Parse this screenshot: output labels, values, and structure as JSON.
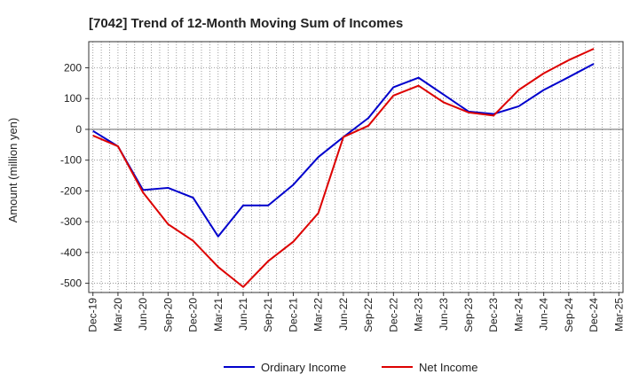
{
  "chart_data": {
    "type": "line",
    "title": "[7042]  Trend of 12-Month Moving Sum of Incomes",
    "xlabel": "",
    "ylabel": "Amount (million yen)",
    "ylim": [
      -530,
      285
    ],
    "yticks": [
      200,
      100,
      0,
      -100,
      -200,
      -300,
      -400,
      -500
    ],
    "grid": true,
    "legend_position": "bottom-center",
    "categories": [
      "Dec-19",
      "Mar-20",
      "Jun-20",
      "Sep-20",
      "Dec-20",
      "Mar-21",
      "Jun-21",
      "Sep-21",
      "Dec-21",
      "Mar-22",
      "Jun-22",
      "Sep-22",
      "Dec-22",
      "Mar-23",
      "Jun-23",
      "Sep-23",
      "Dec-23",
      "Mar-24",
      "Jun-24",
      "Sep-24",
      "Dec-24",
      "Mar-25"
    ],
    "x": [
      "Dec-19",
      "Jan-20",
      "Feb-20",
      "Mar-20",
      "Apr-20",
      "May-20",
      "Jun-20",
      "Jul-20",
      "Aug-20",
      "Sep-20",
      "Oct-20",
      "Nov-20",
      "Dec-20",
      "Jan-21",
      "Feb-21",
      "Mar-21",
      "Apr-21",
      "May-21",
      "Jun-21",
      "Jul-21",
      "Aug-21",
      "Sep-21",
      "Oct-21",
      "Nov-21",
      "Dec-21",
      "Jan-22",
      "Feb-22",
      "Mar-22",
      "Apr-22",
      "May-22",
      "Jun-22",
      "Jul-22",
      "Aug-22",
      "Sep-22",
      "Oct-22",
      "Nov-22",
      "Dec-22",
      "Jan-23",
      "Feb-23",
      "Mar-23",
      "Apr-23",
      "May-23",
      "Jun-23",
      "Jul-23",
      "Aug-23",
      "Sep-23",
      "Oct-23",
      "Nov-23",
      "Dec-23",
      "Jan-24",
      "Feb-24",
      "Mar-24",
      "Apr-24",
      "May-24",
      "Jun-24",
      "Jul-24",
      "Aug-24",
      "Sep-24",
      "Oct-24",
      "Nov-24",
      "Dec-24",
      "Jan-25",
      "Feb-25",
      "Mar-25"
    ],
    "series": [
      {
        "name": "Ordinary Income",
        "color": "#0000cc",
        "points": [
          [
            "Dec-19",
            -5
          ],
          [
            "Mar-20",
            -55
          ],
          [
            "Jun-20",
            -197
          ],
          [
            "Sep-20",
            -190
          ],
          [
            "Dec-20",
            -222
          ],
          [
            "Mar-21",
            -348
          ],
          [
            "Jun-21",
            -247
          ],
          [
            "Sep-21",
            -247
          ],
          [
            "Dec-21",
            -180
          ],
          [
            "Mar-22",
            -90
          ],
          [
            "Jun-22",
            -25
          ],
          [
            "Sep-22",
            37
          ],
          [
            "Dec-22",
            137
          ],
          [
            "Mar-23",
            168
          ],
          [
            "Jun-23",
            113
          ],
          [
            "Sep-23",
            58
          ],
          [
            "Dec-23",
            50
          ],
          [
            "Mar-24",
            75
          ],
          [
            "Jun-24",
            128
          ],
          [
            "Sep-24",
            170
          ],
          [
            "Dec-24",
            213
          ]
        ]
      },
      {
        "name": "Net Income",
        "color": "#dd0000",
        "points": [
          [
            "Dec-19",
            -20
          ],
          [
            "Mar-20",
            -55
          ],
          [
            "Jun-20",
            -205
          ],
          [
            "Sep-20",
            -308
          ],
          [
            "Dec-20",
            -362
          ],
          [
            "Mar-21",
            -447
          ],
          [
            "Jun-21",
            -512
          ],
          [
            "Sep-21",
            -428
          ],
          [
            "Dec-21",
            -365
          ],
          [
            "Mar-22",
            -272
          ],
          [
            "Jun-22",
            -25
          ],
          [
            "Sep-22",
            12
          ],
          [
            "Dec-22",
            110
          ],
          [
            "Mar-23",
            142
          ],
          [
            "Jun-23",
            88
          ],
          [
            "Sep-23",
            55
          ],
          [
            "Dec-23",
            45
          ],
          [
            "Mar-24",
            128
          ],
          [
            "Jun-24",
            182
          ],
          [
            "Sep-24",
            225
          ],
          [
            "Dec-24",
            262
          ]
        ]
      }
    ]
  }
}
